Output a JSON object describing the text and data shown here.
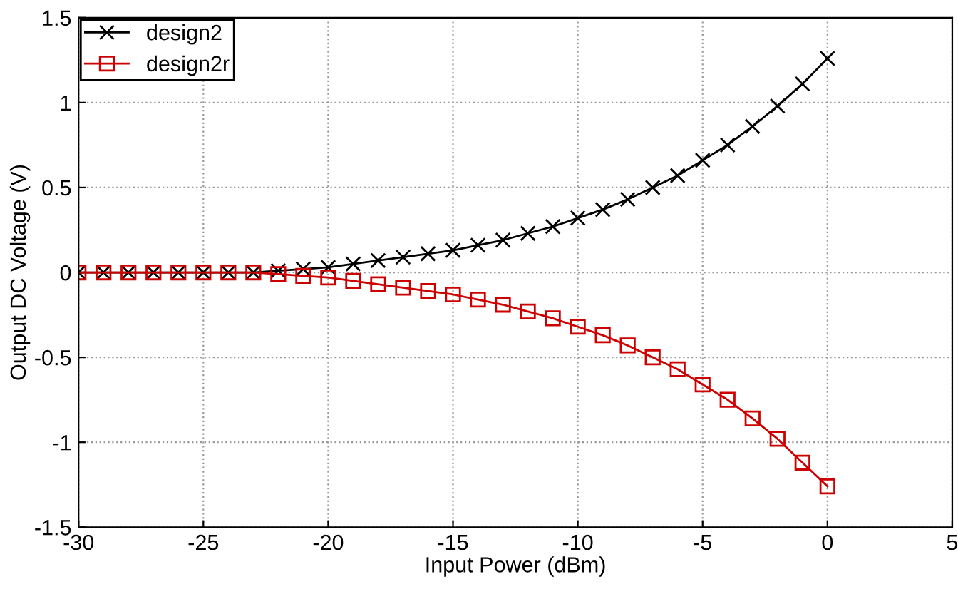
{
  "chart_data": {
    "type": "line",
    "xlabel": "Input Power (dBm)",
    "ylabel": "Output DC Voltage (V)",
    "x": [
      -30,
      -29,
      -28,
      -27,
      -26,
      -25,
      -24,
      -23,
      -22,
      -21,
      -20,
      -19,
      -18,
      -17,
      -16,
      -15,
      -14,
      -13,
      -12,
      -11,
      -10,
      -9,
      -8,
      -7,
      -6,
      -5,
      -4,
      -3,
      -2,
      -1,
      0
    ],
    "series": [
      {
        "name": "design2",
        "color": "#000000",
        "marker": "cross",
        "values": [
          0,
          0,
          0,
          0,
          0,
          0,
          0,
          0,
          0.01,
          0.02,
          0.03,
          0.05,
          0.07,
          0.09,
          0.11,
          0.13,
          0.16,
          0.19,
          0.23,
          0.27,
          0.32,
          0.37,
          0.43,
          0.5,
          0.57,
          0.66,
          0.75,
          0.86,
          0.98,
          1.11,
          1.26
        ]
      },
      {
        "name": "design2r",
        "color": "#cc0000",
        "marker": "square",
        "values": [
          0,
          0,
          0,
          0,
          0,
          0,
          0,
          0,
          -0.01,
          -0.02,
          -0.03,
          -0.05,
          -0.07,
          -0.09,
          -0.11,
          -0.13,
          -0.16,
          -0.19,
          -0.23,
          -0.27,
          -0.32,
          -0.37,
          -0.43,
          -0.5,
          -0.57,
          -0.66,
          -0.75,
          -0.86,
          -0.98,
          -1.12,
          -1.26
        ]
      }
    ],
    "xlim": [
      -30,
      5
    ],
    "xticks": [
      -30,
      -25,
      -20,
      -15,
      -10,
      -5,
      0,
      5
    ],
    "ylim": [
      -1.5,
      1.5
    ],
    "yticks": [
      -1.5,
      -1,
      -0.5,
      0,
      0.5,
      1,
      1.5
    ],
    "grid": true,
    "legend": "top left",
    "line_style": "solid"
  }
}
